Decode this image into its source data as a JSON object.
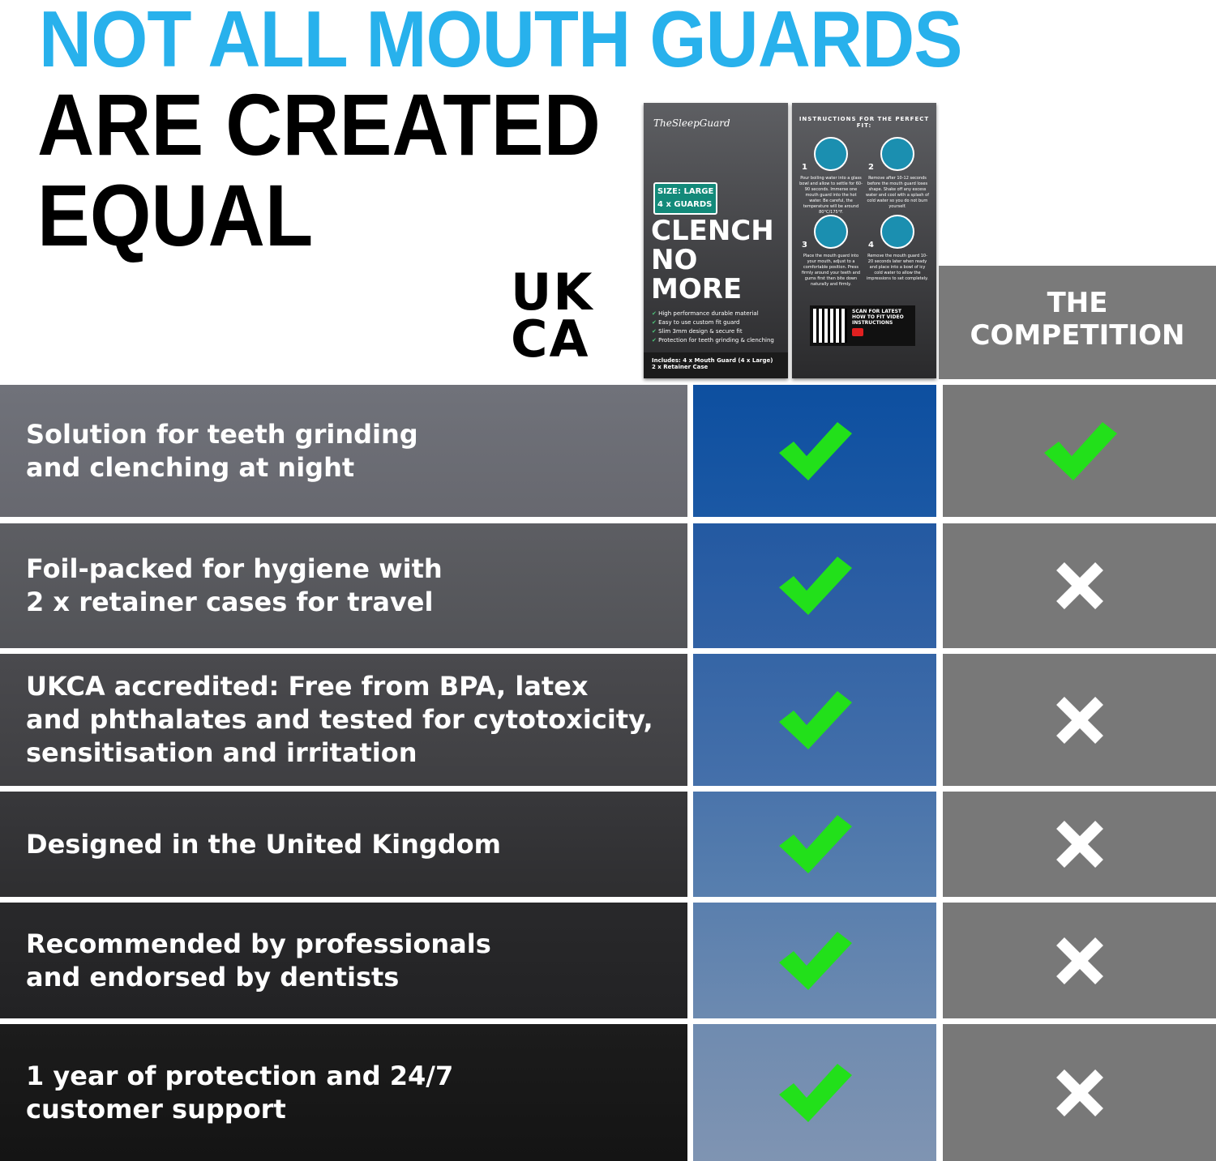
{
  "headline": {
    "line1": "NOT ALL MOUTH GUARDS",
    "line2": "ARE CREATED",
    "line3": "EQUAL"
  },
  "ukca_mark": {
    "line1": "UK",
    "line2": "CA"
  },
  "package_front": {
    "brand": "TheSleepGuard",
    "size": "SIZE: LARGE",
    "count": "4 x GUARDS",
    "title": [
      "CLENCH",
      "NO",
      "MORE"
    ],
    "features": [
      "High performance durable material",
      "Easy to use custom fit guard",
      "Slim 3mm design & secure fit",
      "Protection for teeth grinding & clenching"
    ],
    "includes": [
      "Includes: 4 x Mouth Guard (4 x Large)",
      "2 x Retainer Case"
    ]
  },
  "package_back": {
    "title": "INSTRUCTIONS FOR THE PERFECT FIT:",
    "steps": [
      {
        "n": "1",
        "text": "Pour boiling water into a glass bowl and allow to settle for 60-90 seconds. Immerse one mouth guard into the hot water. Be careful, the temperature will be around 80°C/175°F."
      },
      {
        "n": "2",
        "text": "Remove after 10-12 seconds before the mouth guard loses shape. Shake off any excess water and cool with a splash of cold water so you do not burn yourself."
      },
      {
        "n": "3",
        "text": "Place the mouth guard into your mouth, adjust to a comfortable position. Press firmly around your teeth and gums first then bite down naturally and firmly."
      },
      {
        "n": "4",
        "text": "Remove the mouth guard 10-20 seconds later when ready and place into a bowl of icy cold water to allow the impressions to set completely."
      }
    ],
    "qr_text": "SCAN FOR LATEST HOW TO FIT VIDEO INSTRUCTIONS"
  },
  "competition_header": "THE\nCOMPETITION",
  "colors": {
    "headline": "#28b1ec",
    "ours_top": "#0d4fa0",
    "ours_bottom": "#7b8aa6",
    "competition": "#787878",
    "check": "#22e01a",
    "cross": "#ffffff"
  },
  "rows": [
    {
      "feature": "Solution for teeth grinding\nand clenching at night",
      "ours": "check-icon",
      "competition": "check-icon"
    },
    {
      "feature": "Foil-packed for hygiene with\n2 x retainer cases for travel",
      "ours": "check-icon",
      "competition": "cross-icon"
    },
    {
      "feature": "UKCA accredited: Free from BPA, latex\nand phthalates and tested for cytotoxicity,\nsensitisation and irritation",
      "ours": "check-icon",
      "competition": "cross-icon"
    },
    {
      "feature": "Designed in the United Kingdom",
      "ours": "check-icon",
      "competition": "cross-icon"
    },
    {
      "feature": "Recommended by professionals\nand endorsed by dentists",
      "ours": "check-icon",
      "competition": "cross-icon"
    },
    {
      "feature": "1 year of protection and 24/7\ncustomer support",
      "ours": "check-icon",
      "competition": "cross-icon"
    }
  ]
}
